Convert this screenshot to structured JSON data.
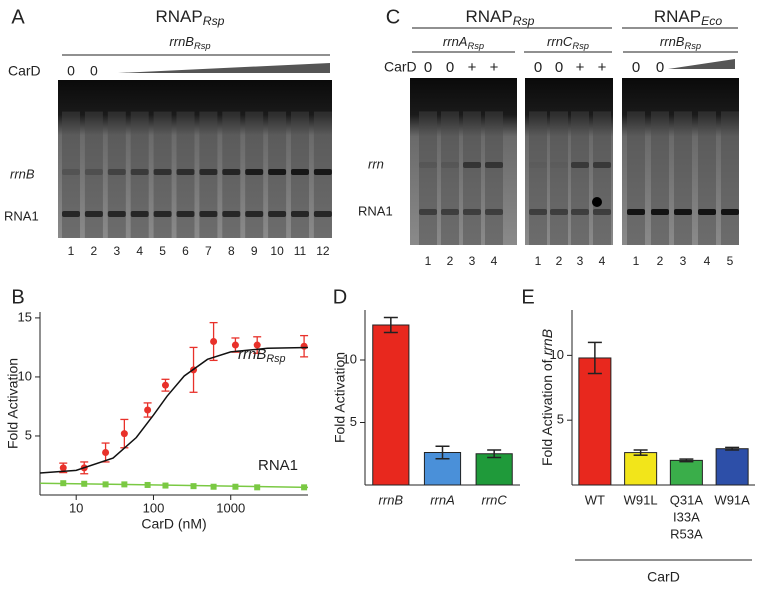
{
  "panel_a": {
    "letter": "A",
    "title": {
      "text": "RNAP",
      "sub": "Rsp"
    },
    "template": {
      "text": "rrnB",
      "sub": "Rsp"
    },
    "row_label": "CarD",
    "cond": [
      "0",
      "0"
    ],
    "band_labels": [
      "rrnB",
      "RNA1"
    ],
    "lanes": [
      1,
      2,
      3,
      4,
      5,
      6,
      7,
      8,
      9,
      10,
      11,
      12
    ]
  },
  "panel_c": {
    "letter": "C",
    "row_label": "CarD",
    "band_labels": [
      "rrn",
      "RNA1"
    ],
    "groups": [
      {
        "title": {
          "text": "RNAP",
          "sub": "Rsp"
        }
      },
      {
        "title": {
          "text": "RNAP",
          "sub": "Eco"
        }
      }
    ],
    "gels": [
      {
        "template": {
          "text": "rrnA",
          "sub": "Rsp"
        },
        "cond": [
          "0",
          "0",
          "+",
          "+"
        ],
        "lanes": [
          1,
          2,
          3,
          4
        ]
      },
      {
        "template": {
          "text": "rrnC",
          "sub": "Rsp"
        },
        "cond": [
          "0",
          "0",
          "+",
          "+"
        ],
        "lanes": [
          1,
          2,
          3,
          4
        ]
      },
      {
        "template": {
          "text": "rrnB",
          "sub": "Rsp"
        },
        "cond": [
          "0",
          "0"
        ],
        "lanes": [
          1,
          2,
          3,
          4,
          5
        ]
      }
    ]
  },
  "chart_data": [
    {
      "type": "scatter",
      "letter": "B",
      "xlabel": "CarD (nM)",
      "ylabel": "Fold Activation",
      "log_x": true,
      "xlim": [
        3.4,
        10000
      ],
      "xticks": [
        10,
        100,
        1000
      ],
      "ylim": [
        0,
        15.5
      ],
      "yticks": [
        5,
        10,
        15
      ],
      "series": [
        {
          "name": {
            "text": "rrnB",
            "sub": "Rsp"
          },
          "color": "#e8312a",
          "marker": "circle",
          "x": [
            6.8,
            12.7,
            24,
            42,
            84,
            143,
            330,
            600,
            1150,
            2200,
            8900
          ],
          "values": [
            2.3,
            2.3,
            3.6,
            5.2,
            7.2,
            9.3,
            10.6,
            13.0,
            12.7,
            12.7,
            12.6
          ],
          "errors": [
            0.4,
            0.5,
            0.8,
            1.2,
            0.6,
            0.5,
            1.9,
            1.6,
            0.6,
            0.7,
            0.9
          ]
        },
        {
          "name": "RNA1",
          "color": "#7ac943",
          "marker": "square",
          "x": [
            6.8,
            12.7,
            24,
            42,
            84,
            143,
            330,
            600,
            1150,
            2200,
            8900
          ],
          "values": [
            1.0,
            0.95,
            0.9,
            0.9,
            0.85,
            0.8,
            0.75,
            0.7,
            0.7,
            0.65,
            0.65
          ]
        },
        {
          "color": "#111111",
          "marker": "line",
          "x": [
            3.4,
            10,
            30,
            60,
            100,
            150,
            250,
            500,
            1000,
            3000,
            10000
          ],
          "values": [
            1.86,
            2.09,
            3.13,
            4.87,
            6.77,
            8.37,
            10.08,
            11.49,
            12.12,
            12.43,
            12.49
          ]
        },
        {
          "color": "#7ac943",
          "marker": "line",
          "x": [
            3.4,
            10000
          ],
          "values": [
            1.0,
            0.65
          ]
        }
      ]
    },
    {
      "type": "bar",
      "letter": "D",
      "ylabel": "Fold Activation",
      "italic_categories": true,
      "ylim": [
        0,
        14
      ],
      "yticks": [
        5,
        10
      ],
      "categories": [
        "rrnB",
        "rrnA",
        "rrnC"
      ],
      "values": [
        12.8,
        2.6,
        2.5
      ],
      "errors": [
        0.6,
        0.5,
        0.3
      ],
      "colors": [
        "#e8281e",
        "#4a90d9",
        "#1f9a3a"
      ]
    },
    {
      "type": "bar",
      "letter": "E",
      "ylabel": {
        "text": "Fold Activation of",
        "italic": "rrnB"
      },
      "ylim": [
        0,
        13.5
      ],
      "yticks": [
        5,
        10
      ],
      "categories": [
        "WT",
        "W91L",
        [
          "Q31A",
          "I33A",
          "R53A"
        ],
        "W91A"
      ],
      "values": [
        9.8,
        2.5,
        1.9,
        2.8
      ],
      "errors": [
        1.2,
        0.2,
        0.1,
        0.1
      ],
      "colors": [
        "#e8281e",
        "#f2e51a",
        "#3aae4a",
        "#2d4fa8"
      ],
      "group_label": "CarD"
    }
  ]
}
